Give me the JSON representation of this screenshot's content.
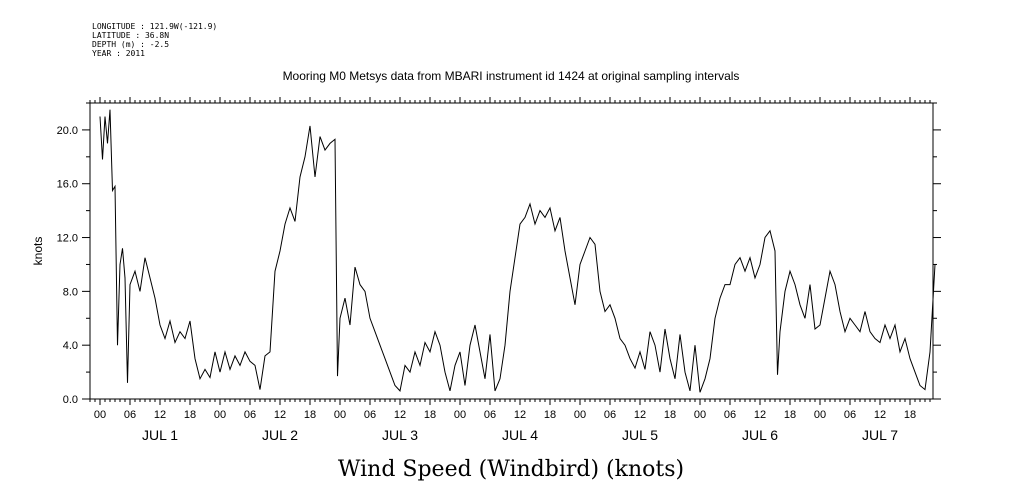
{
  "metadata": {
    "longitude": "LONGITUDE : 121.9W(-121.9)",
    "latitude": "LATITUDE : 36.8N",
    "depth": "DEPTH (m) : -2.5",
    "year": "YEAR : 2011"
  },
  "chart_data": {
    "type": "line",
    "title": "Mooring M0 Metsys data from MBARI instrument id 1424 at original sampling intervals",
    "xlabel": "Wind Speed (Windbird) (knots)",
    "ylabel": "knots",
    "xlim": [
      0,
      167
    ],
    "ylim": [
      0,
      22
    ],
    "yticks": [
      0,
      4,
      8,
      12,
      16,
      20
    ],
    "ytick_labels": [
      "0.0",
      "4.0",
      "8.0",
      "12.0",
      "16.0",
      "20.0"
    ],
    "hour_tick_labels": [
      "00",
      "06",
      "12",
      "18",
      "00",
      "06",
      "12",
      "18",
      "00",
      "06",
      "12",
      "18",
      "00",
      "06",
      "12",
      "18",
      "00",
      "06",
      "12",
      "18",
      "00",
      "06",
      "12",
      "18",
      "00",
      "06",
      "12",
      "18"
    ],
    "day_labels": [
      "JUL  1",
      "JUL  2",
      "JUL  3",
      "JUL  4",
      "JUL  5",
      "JUL  6",
      "JUL  7"
    ],
    "grid": false,
    "series": [
      {
        "color": "#000000",
        "points": [
          [
            0,
            21
          ],
          [
            0.5,
            17.8
          ],
          [
            1,
            21
          ],
          [
            1.5,
            19
          ],
          [
            2,
            21.5
          ],
          [
            2.5,
            15.5
          ],
          [
            3,
            15.8
          ],
          [
            3.5,
            4
          ],
          [
            4,
            10
          ],
          [
            4.5,
            11.2
          ],
          [
            5,
            9
          ],
          [
            5.5,
            1.2
          ],
          [
            6,
            8.5
          ],
          [
            7,
            9.5
          ],
          [
            8,
            8
          ],
          [
            9,
            10.5
          ],
          [
            10,
            9
          ],
          [
            11,
            7.5
          ],
          [
            12,
            5.5
          ],
          [
            13,
            4.5
          ],
          [
            14,
            5.8
          ],
          [
            15,
            4.2
          ],
          [
            16,
            5
          ],
          [
            17,
            4.5
          ],
          [
            18,
            5.8
          ],
          [
            19,
            3
          ],
          [
            20,
            1.5
          ],
          [
            21,
            2.2
          ],
          [
            22,
            1.6
          ],
          [
            23,
            3.5
          ],
          [
            24,
            2
          ],
          [
            25,
            3.5
          ],
          [
            26,
            2.2
          ],
          [
            27,
            3.2
          ],
          [
            28,
            2.5
          ],
          [
            29,
            3.5
          ],
          [
            30,
            2.8
          ],
          [
            31,
            2.5
          ],
          [
            32,
            0.7
          ],
          [
            33,
            3.2
          ],
          [
            34,
            3.5
          ],
          [
            35,
            9.5
          ],
          [
            36,
            11
          ],
          [
            37,
            13
          ],
          [
            38,
            14.2
          ],
          [
            39,
            13.2
          ],
          [
            40,
            16.5
          ],
          [
            41,
            18
          ],
          [
            42,
            20.3
          ],
          [
            43,
            16.5
          ],
          [
            44,
            19.5
          ],
          [
            45,
            18.5
          ],
          [
            46,
            19
          ],
          [
            47,
            19.3
          ],
          [
            47.5,
            1.7
          ],
          [
            48,
            6
          ],
          [
            49,
            7.5
          ],
          [
            50,
            5.5
          ],
          [
            51,
            9.8
          ],
          [
            52,
            8.5
          ],
          [
            53,
            8
          ],
          [
            54,
            6
          ],
          [
            55,
            5
          ],
          [
            56,
            4
          ],
          [
            57,
            3
          ],
          [
            58,
            2
          ],
          [
            59,
            1
          ],
          [
            60,
            0.6
          ],
          [
            61,
            2.5
          ],
          [
            62,
            2
          ],
          [
            63,
            3.5
          ],
          [
            64,
            2.5
          ],
          [
            65,
            4.2
          ],
          [
            66,
            3.5
          ],
          [
            67,
            5
          ],
          [
            68,
            4
          ],
          [
            69,
            2
          ],
          [
            70,
            0.6
          ],
          [
            71,
            2.5
          ],
          [
            72,
            3.5
          ],
          [
            73,
            1
          ],
          [
            74,
            4
          ],
          [
            75,
            5.5
          ],
          [
            76,
            3.5
          ],
          [
            77,
            1.5
          ],
          [
            78,
            4.8
          ],
          [
            79,
            0.6
          ],
          [
            80,
            1.5
          ],
          [
            81,
            4
          ],
          [
            82,
            8
          ],
          [
            83,
            10.5
          ],
          [
            84,
            13
          ],
          [
            85,
            13.5
          ],
          [
            86,
            14.5
          ],
          [
            87,
            13
          ],
          [
            88,
            14
          ],
          [
            89,
            13.5
          ],
          [
            90,
            14.2
          ],
          [
            91,
            12.5
          ],
          [
            92,
            13.5
          ],
          [
            93,
            11
          ],
          [
            94,
            9
          ],
          [
            95,
            7
          ],
          [
            96,
            10
          ],
          [
            97,
            11
          ],
          [
            98,
            12
          ],
          [
            99,
            11.5
          ],
          [
            100,
            8
          ],
          [
            101,
            6.5
          ],
          [
            102,
            7
          ],
          [
            103,
            6
          ],
          [
            104,
            4.5
          ],
          [
            105,
            4
          ],
          [
            106,
            3
          ],
          [
            107,
            2.3
          ],
          [
            108,
            3.5
          ],
          [
            109,
            2.2
          ],
          [
            110,
            5
          ],
          [
            111,
            4
          ],
          [
            112,
            2
          ],
          [
            113,
            5.2
          ],
          [
            114,
            3
          ],
          [
            115,
            1.5
          ],
          [
            116,
            4.8
          ],
          [
            117,
            2
          ],
          [
            118,
            0.6
          ],
          [
            119,
            4
          ],
          [
            120,
            0.5
          ],
          [
            121,
            1.5
          ],
          [
            122,
            3
          ],
          [
            123,
            6
          ],
          [
            124,
            7.5
          ],
          [
            125,
            8.5
          ],
          [
            126,
            8.5
          ],
          [
            127,
            10
          ],
          [
            128,
            10.5
          ],
          [
            129,
            9.5
          ],
          [
            130,
            10.5
          ],
          [
            131,
            9
          ],
          [
            132,
            10
          ],
          [
            133,
            12
          ],
          [
            134,
            12.5
          ],
          [
            135,
            11
          ],
          [
            135.5,
            1.8
          ],
          [
            136,
            5
          ],
          [
            137,
            8
          ],
          [
            138,
            9.5
          ],
          [
            139,
            8.5
          ],
          [
            140,
            7
          ],
          [
            141,
            6
          ],
          [
            142,
            8.5
          ],
          [
            143,
            5.2
          ],
          [
            144,
            5.5
          ],
          [
            145,
            7.5
          ],
          [
            146,
            9.5
          ],
          [
            147,
            8.5
          ],
          [
            148,
            6.5
          ],
          [
            149,
            5
          ],
          [
            150,
            6
          ],
          [
            151,
            5.5
          ],
          [
            152,
            5
          ],
          [
            153,
            6.5
          ],
          [
            154,
            5
          ],
          [
            155,
            4.5
          ],
          [
            156,
            4.2
          ],
          [
            157,
            5.5
          ],
          [
            158,
            4.5
          ],
          [
            159,
            5.5
          ],
          [
            160,
            3.5
          ],
          [
            161,
            4.5
          ],
          [
            162,
            3
          ],
          [
            163,
            2
          ],
          [
            164,
            1
          ],
          [
            165,
            0.7
          ],
          [
            166,
            3.5
          ],
          [
            167,
            10
          ]
        ]
      }
    ]
  }
}
